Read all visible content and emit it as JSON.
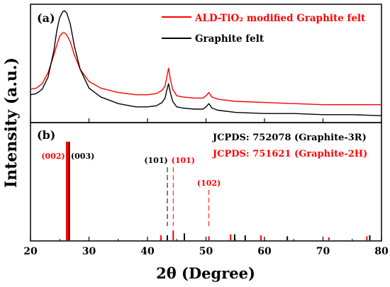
{
  "chart_data": {
    "type": "line",
    "figure": {
      "ylabel": "Intensity (a.u.)",
      "xlabel": "2θ (Degree)",
      "xlim": [
        20,
        80
      ],
      "xticks": [
        20,
        30,
        40,
        50,
        60,
        70,
        80
      ]
    },
    "panels": [
      {
        "panel_label": "(a)",
        "type": "line",
        "legend_position": "top-right",
        "series": [
          {
            "name": "ALD-TiO₂ modified Graphite felt",
            "color": "#ff0000",
            "x": [
              20,
              21,
              22,
              23,
              24,
              24.5,
              25,
              25.5,
              25.8,
              26.2,
              26.8,
              27.5,
              28.5,
              30,
              32,
              35,
              38,
              40,
              41.5,
              42.5,
              43,
              43.3,
              43.6,
              43.9,
              44.3,
              45,
              46,
              48,
              49.5,
              50,
              50.5,
              51,
              52,
              55,
              60,
              65,
              70,
              75,
              80
            ],
            "values": [
              0.27,
              0.28,
              0.32,
              0.42,
              0.58,
              0.67,
              0.75,
              0.78,
              0.78,
              0.76,
              0.7,
              0.58,
              0.45,
              0.34,
              0.28,
              0.24,
              0.22,
              0.22,
              0.23,
              0.26,
              0.3,
              0.38,
              0.46,
              0.36,
              0.27,
              0.21,
              0.2,
              0.19,
              0.19,
              0.21,
              0.24,
              0.2,
              0.18,
              0.16,
              0.15,
              0.14,
              0.13,
              0.13,
              0.13
            ]
          },
          {
            "name": "Graphite felt",
            "color": "#000000",
            "x": [
              20,
              21,
              22,
              23,
              24,
              24.5,
              25,
              25.5,
              25.8,
              26.2,
              26.8,
              27.5,
              28.5,
              30,
              32,
              35,
              38,
              40,
              41.5,
              42.5,
              43,
              43.3,
              43.6,
              43.9,
              44.3,
              45,
              46,
              48,
              49.5,
              50,
              50.5,
              51,
              52,
              55,
              60,
              65,
              70,
              75,
              80
            ],
            "values": [
              0.22,
              0.23,
              0.27,
              0.38,
              0.62,
              0.8,
              0.92,
              0.97,
              0.98,
              0.96,
              0.86,
              0.66,
              0.45,
              0.28,
              0.2,
              0.14,
              0.11,
              0.11,
              0.12,
              0.15,
              0.19,
              0.26,
              0.32,
              0.24,
              0.16,
              0.11,
              0.1,
              0.09,
              0.09,
              0.11,
              0.14,
              0.1,
              0.08,
              0.06,
              0.05,
              0.05,
              0.04,
              0.04,
              0.03
            ]
          }
        ]
      },
      {
        "panel_label": "(b)",
        "type": "bar",
        "legend": [
          {
            "text": "JCPDS: 752078 (Graphite-3R)",
            "color": "#000000"
          },
          {
            "text": "JCPDS: 751621 (Graphite-2H)",
            "color": "#ff0000"
          }
        ],
        "series": [
          {
            "name": "JCPDS: 752078 (Graphite-3R)",
            "color": "#000000",
            "x": [
              26.5,
              43.4,
              46.3,
              54.9,
              56.7,
              63.9,
              78.0
            ],
            "values": [
              100,
              5,
              7,
              6,
              5,
              4,
              5
            ]
          },
          {
            "name": "JCPDS: 751621 (Graphite-2H)",
            "color": "#ff0000",
            "x": [
              26.3,
              42.3,
              44.4,
              50.5,
              54.2,
              59.4,
              71.0,
              77.5
            ],
            "values": [
              100,
              5,
              10,
              4,
              6,
              5,
              3,
              4
            ]
          }
        ],
        "annotations": [
          {
            "text": "(002)",
            "x": 26.3,
            "color": "#ff0000"
          },
          {
            "text": "(003)",
            "x": 26.5,
            "color": "#000000"
          },
          {
            "text": "(101)",
            "x": 43.4,
            "color": "#000000"
          },
          {
            "text": "(101)",
            "x": 44.4,
            "color": "#ff0000"
          },
          {
            "text": "(102)",
            "x": 50.5,
            "color": "#ff0000"
          }
        ]
      }
    ]
  }
}
